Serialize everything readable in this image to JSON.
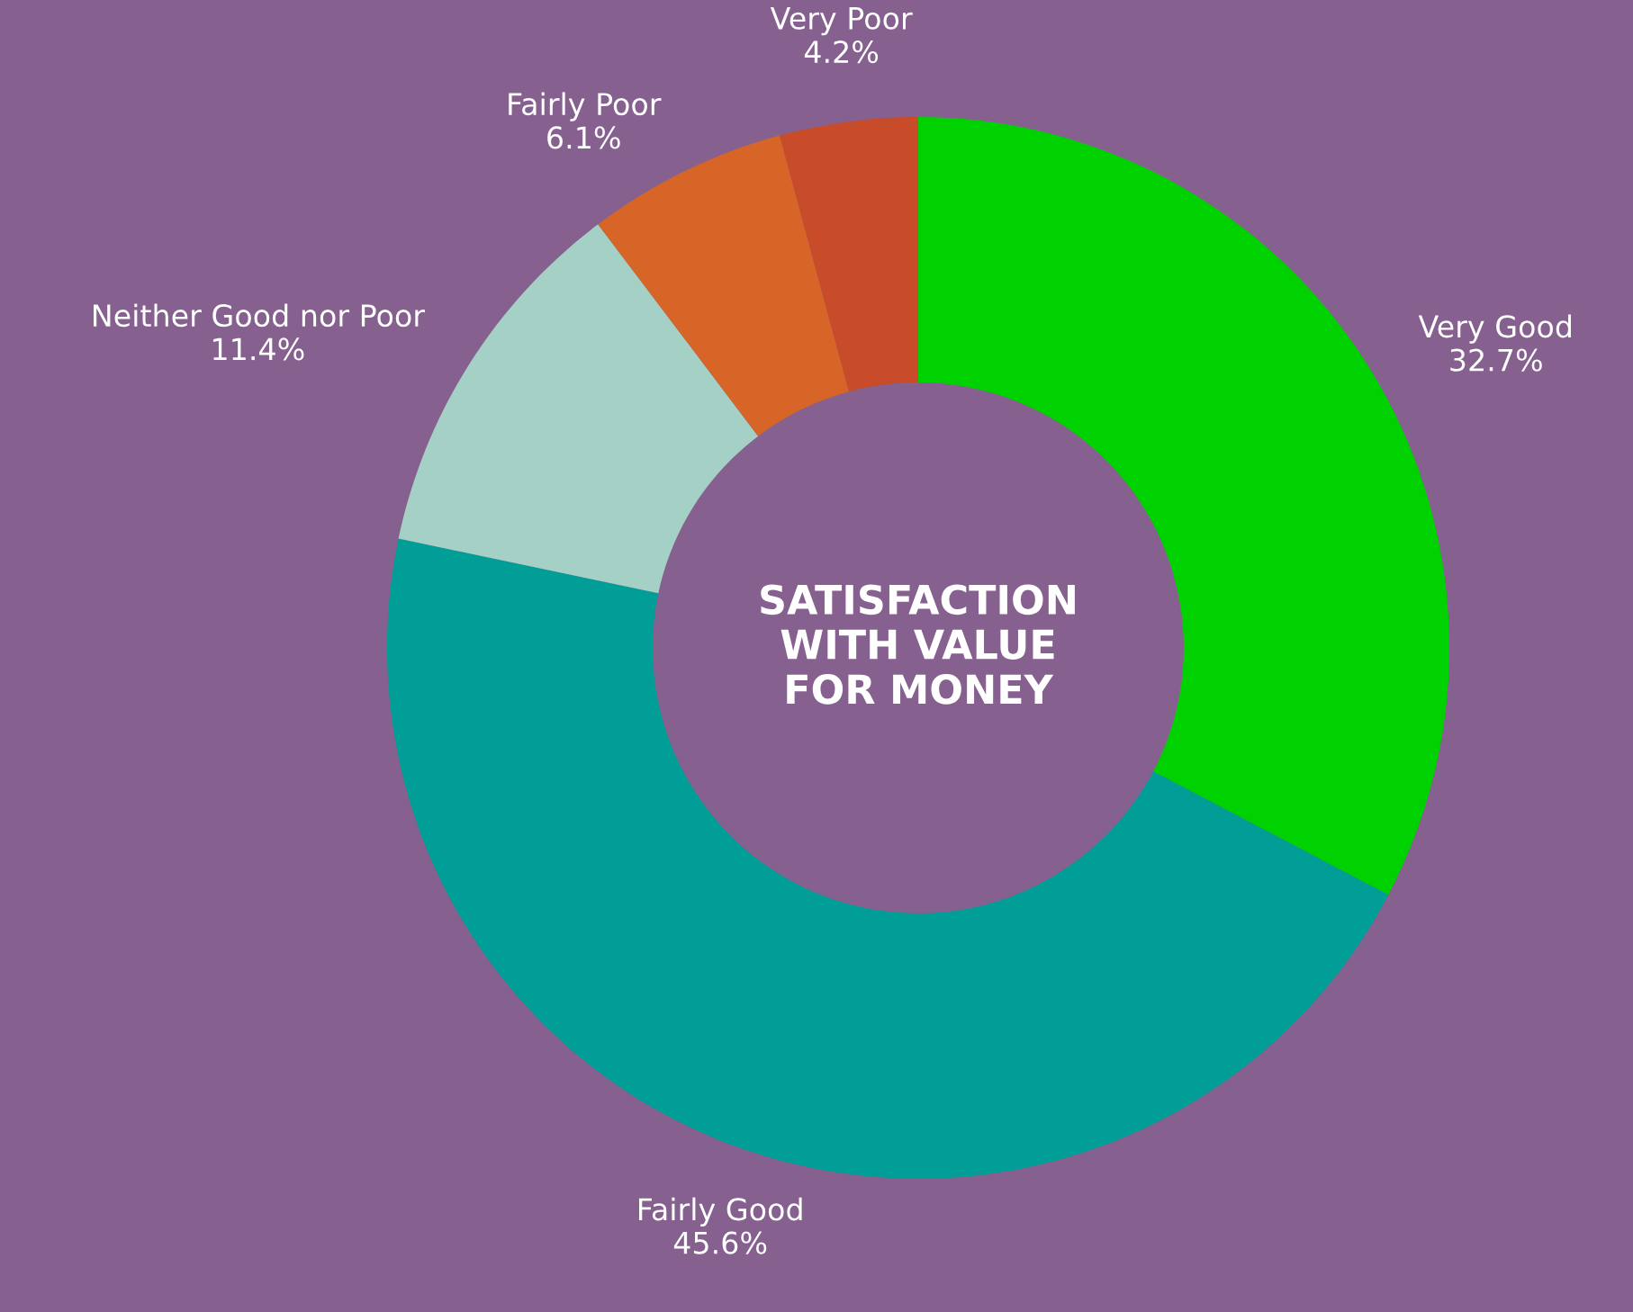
{
  "chart_data": {
    "type": "donut",
    "title": "SATISFACTION\nWITH VALUE\nFOR MONEY",
    "categories": [
      "Very Good",
      "Fairly Good",
      "Neither Good nor Poor",
      "Fairly Poor",
      "Very Poor"
    ],
    "values": [
      32.7,
      45.6,
      11.4,
      6.1,
      4.2
    ],
    "value_labels": [
      "32.7%",
      "45.6%",
      "11.4%",
      "6.1%",
      "4.2%"
    ],
    "colors": [
      "#00d100",
      "#009e96",
      "#a5d0c5",
      "#d66527",
      "#c84b2a"
    ],
    "legend": false
  }
}
